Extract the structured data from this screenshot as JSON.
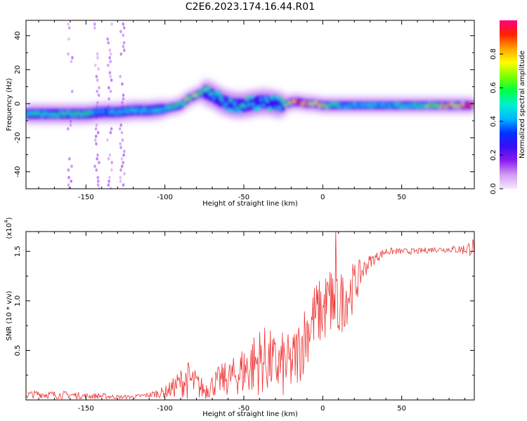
{
  "figure": {
    "title": "C2E6.2023.174.16.44.R01"
  },
  "chart_data": [
    {
      "type": "heatmap",
      "xlabel": "Height of straight line (km)",
      "ylabel": "Frequency (Hz)",
      "xlim": [
        -188,
        96
      ],
      "ylim": [
        -50,
        49
      ],
      "xticks": [
        -150,
        -100,
        -50,
        0,
        50
      ],
      "yticks": [
        -40,
        -20,
        0,
        20,
        40
      ],
      "grid": false,
      "colorbar": {
        "label": "Normalized spectral amplitude",
        "ticks": [
          0.0,
          0.2,
          0.4,
          0.6,
          0.8
        ],
        "range": [
          0,
          1
        ],
        "colors": [
          "#f6e8ff",
          "#d39bf2",
          "#8a1df0",
          "#3a0df4",
          "#0033ff",
          "#00b8ff",
          "#00f0d0",
          "#00ff44",
          "#7eff00",
          "#ffff00",
          "#ffa000",
          "#ff2200",
          "#ff0080"
        ]
      },
      "ridge": {
        "x": [
          -188,
          -175,
          -160,
          -150,
          -140,
          -130,
          -120,
          -110,
          -100,
          -90,
          -85,
          -80,
          -75,
          -70,
          -65,
          -60,
          -55,
          -50,
          -45,
          -40,
          -35,
          -30,
          -25,
          -22,
          -20,
          -15,
          -10,
          -5,
          0,
          5,
          10,
          20,
          30,
          40,
          50,
          60,
          70,
          80,
          90,
          96
        ],
        "y": [
          -6,
          -6,
          -6,
          -6,
          -5,
          -5,
          -4,
          -4,
          -3,
          -1,
          3,
          5,
          7,
          5,
          2,
          0,
          -1,
          -1,
          0,
          1,
          1,
          0,
          -1,
          0,
          1,
          1,
          0,
          0,
          -1,
          -1,
          -1,
          -1,
          -1,
          -1,
          -1,
          -1,
          -1,
          -1,
          -1,
          -1
        ],
        "peak_amplitude": [
          0.5,
          0.55,
          0.6,
          0.55,
          0.4,
          0.45,
          0.5,
          0.5,
          0.5,
          0.6,
          0.7,
          0.7,
          0.6,
          0.55,
          0.5,
          0.5,
          0.55,
          0.55,
          0.5,
          0.5,
          0.5,
          0.5,
          0.6,
          0.75,
          0.85,
          0.9,
          0.85,
          0.85,
          0.8,
          0.6,
          0.5,
          0.45,
          0.45,
          0.45,
          0.5,
          0.55,
          0.7,
          0.85,
          0.9,
          0.9
        ]
      }
    },
    {
      "type": "line",
      "xlabel": "Height of straight line (km)",
      "ylabel": "SNR (10 * v/v)",
      "scale_label": "(x10",
      "scale_exponent": "4",
      "xlim": [
        -188,
        96
      ],
      "ylim": [
        0,
        1.7
      ],
      "xticks": [
        -150,
        -100,
        -50,
        0,
        50
      ],
      "yticks": [
        0.5,
        1.0,
        1.5
      ],
      "ytick_labels": [
        "0.5",
        "1.0",
        "1.5"
      ],
      "grid": false,
      "color": "#ee3333",
      "series": [
        {
          "x": [
            -188,
            -180,
            -170,
            -160,
            -150,
            -140,
            -130,
            -120,
            -110,
            -100,
            -95,
            -90,
            -85,
            -80,
            -75,
            -70,
            -65,
            -60,
            -55,
            -50,
            -45,
            -40,
            -35,
            -30,
            -25,
            -20,
            -15,
            -10,
            -5,
            0,
            5,
            10,
            15,
            20,
            25,
            30,
            35,
            40,
            50,
            60,
            70,
            80,
            90,
            96
          ],
          "y": [
            0.05,
            0.06,
            0.05,
            0.05,
            0.04,
            0.04,
            0.03,
            0.03,
            0.05,
            0.08,
            0.12,
            0.18,
            0.2,
            0.15,
            0.1,
            0.15,
            0.2,
            0.22,
            0.25,
            0.3,
            0.35,
            0.4,
            0.4,
            0.35,
            0.35,
            0.35,
            0.5,
            0.7,
            0.85,
            0.9,
            1.0,
            0.95,
            1.05,
            1.15,
            1.3,
            1.4,
            1.45,
            1.5,
            1.5,
            1.5,
            1.52,
            1.52,
            1.52,
            1.55
          ],
          "noise": [
            0.04,
            0.04,
            0.04,
            0.04,
            0.03,
            0.03,
            0.02,
            0.02,
            0.03,
            0.06,
            0.1,
            0.15,
            0.2,
            0.15,
            0.1,
            0.12,
            0.16,
            0.18,
            0.2,
            0.28,
            0.32,
            0.35,
            0.35,
            0.3,
            0.35,
            0.3,
            0.35,
            0.35,
            0.35,
            0.35,
            0.4,
            0.35,
            0.3,
            0.25,
            0.12,
            0.07,
            0.05,
            0.04,
            0.03,
            0.03,
            0.03,
            0.03,
            0.06,
            0.1
          ]
        }
      ]
    }
  ]
}
